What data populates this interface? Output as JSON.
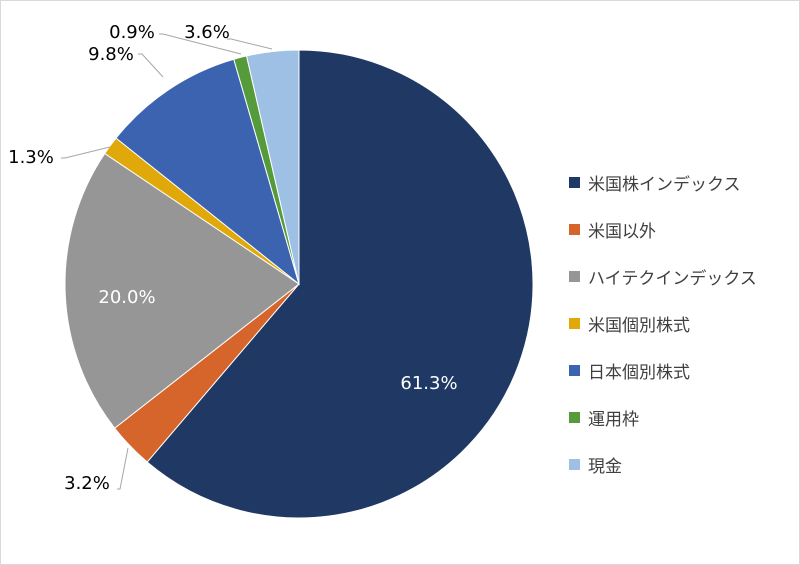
{
  "chart_data": {
    "type": "pie",
    "title": "",
    "slices": [
      {
        "label": "米国株インデックス",
        "value": 61.3,
        "display": "61.3%",
        "color": "#203864"
      },
      {
        "label": "米国以外",
        "value": 3.2,
        "display": "3.2%",
        "color": "#d5652a"
      },
      {
        "label": "ハイテクインデックス",
        "value": 20.0,
        "display": "20.0%",
        "color": "#969696"
      },
      {
        "label": "米国個別株式",
        "value": 1.3,
        "display": "1.3%",
        "color": "#e0a909"
      },
      {
        "label": "日本個別株式",
        "value": 9.8,
        "display": "9.8%",
        "color": "#3c63b0"
      },
      {
        "label": "運用枠",
        "value": 0.9,
        "display": "0.9%",
        "color": "#559b3b"
      },
      {
        "label": "現金",
        "value": 3.6,
        "display": "3.6%",
        "color": "#9dc0e4"
      }
    ],
    "legend_position": "right",
    "start_angle": "12 o'clock",
    "direction": "clockwise"
  }
}
